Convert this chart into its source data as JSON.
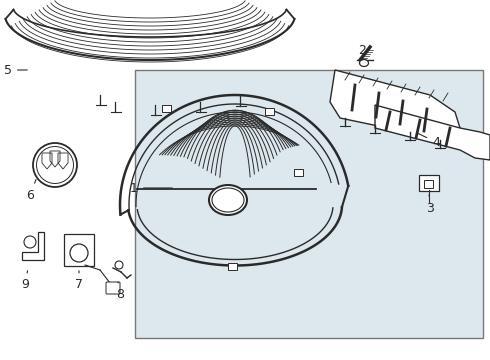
{
  "bg_color": "#ffffff",
  "line_color": "#2a2a2a",
  "box_bg": "#dde8ee",
  "box_border": "#888888",
  "fig_width": 4.9,
  "fig_height": 3.6,
  "dpi": 100
}
